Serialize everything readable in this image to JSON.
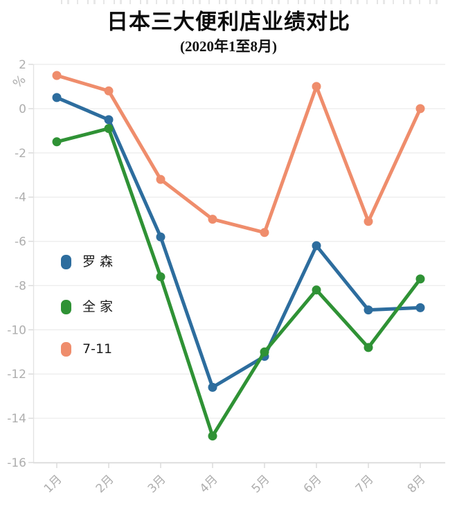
{
  "figure": {
    "clipped_top_text_present": true
  },
  "chart_data": {
    "type": "line",
    "title": "日本三大便利店业绩对比",
    "subtitle": "(2020年1至8月)",
    "ylabel": "%",
    "xlabel": "",
    "categories": [
      "1月",
      "2月",
      "3月",
      "4月",
      "5月",
      "6月",
      "7月",
      "8月"
    ],
    "series": [
      {
        "name": "罗 森",
        "color": "#2d6d9e",
        "values": [
          0.5,
          -0.5,
          -5.8,
          -12.6,
          -11.2,
          -6.2,
          -9.1,
          -9.0
        ]
      },
      {
        "name": "全 家",
        "color": "#2f9235",
        "values": [
          -1.5,
          -0.9,
          -7.6,
          -14.8,
          -11.0,
          -8.2,
          -10.8,
          -7.7
        ]
      },
      {
        "name": "7-11",
        "color": "#ef8d6c",
        "values": [
          1.5,
          0.8,
          -3.2,
          -5.0,
          -5.6,
          1.0,
          -5.1,
          0.0
        ]
      }
    ],
    "ylim": [
      -16,
      2
    ],
    "ytick_step": 2,
    "y_tick_labels": [
      "2",
      "0",
      "-2",
      "-4",
      "-6",
      "-8",
      "-10",
      "-12",
      "-14",
      "-16"
    ],
    "grid": true,
    "legend_position": "middle-left",
    "tick_label_rotation_deg": 45
  },
  "style_colors": {
    "gridline": "#ededed",
    "axis_line": "#d9d9d9",
    "y_axis_line": "#e3e3e3",
    "tick_mark": "#d9d9d9",
    "tick_label": "#aeaeae",
    "legend_text": "#1b1b1b",
    "title_text": "#0b0b0b"
  }
}
